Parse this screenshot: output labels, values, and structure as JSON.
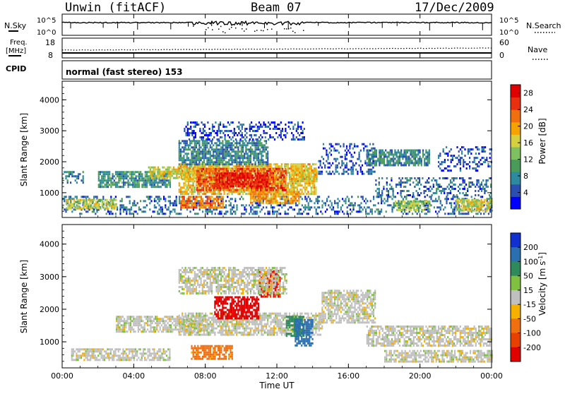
{
  "header": {
    "station": "Unwin (fitACF)",
    "beam": "Beam 07",
    "date": "17/Dec/2009"
  },
  "noise_panel": {
    "left_label": "N.Sky",
    "right_label": "N.Search",
    "left_ticks": [
      "10^5",
      "10^0"
    ],
    "right_ticks": [
      "10^5",
      "10^0"
    ]
  },
  "freq_panel": {
    "left_label_line1": "Freq.",
    "left_label_line2": "[MHz]",
    "right_label": "Nave",
    "left_ticks": [
      "18",
      "8"
    ],
    "right_ticks": [
      "60",
      "0"
    ]
  },
  "cpid_panel": {
    "label": "CPID",
    "text": "normal (fast stereo) 153"
  },
  "chart_data": [
    {
      "type": "heatmap",
      "panel": "power",
      "ylabel": "Slant Range [km]",
      "xlabel": "",
      "x_ticks": [
        "00:00",
        "04:00",
        "08:00",
        "12:00",
        "16:00",
        "20:00",
        "00:00"
      ],
      "y_ticks": [
        1000,
        2000,
        3000,
        4000
      ],
      "ylim": [
        200,
        4600
      ],
      "xlim_hours": [
        0,
        24
      ],
      "colorbar": {
        "label": "Power [dB]",
        "ticks": [
          4,
          8,
          12,
          16,
          20,
          24,
          28
        ],
        "range": [
          0,
          30
        ],
        "colors": [
          "#0000ff",
          "#2a4fb0",
          "#2e8a9e",
          "#4a9a5a",
          "#7fc060",
          "#d4d040",
          "#f5a300",
          "#f07010",
          "#e83010",
          "#e00000"
        ]
      },
      "regions": [
        {
          "t0": 0.0,
          "t1": 24.0,
          "r0": 350,
          "r1": 900,
          "level": 6
        },
        {
          "t0": 0.2,
          "t1": 3.0,
          "r0": 500,
          "r1": 800,
          "level": 15
        },
        {
          "t0": 0.0,
          "t1": 1.2,
          "r0": 1300,
          "r1": 1700,
          "level": 7
        },
        {
          "t0": 2.0,
          "t1": 6.0,
          "r0": 1200,
          "r1": 1700,
          "level": 9
        },
        {
          "t0": 4.8,
          "t1": 8.0,
          "r0": 1450,
          "r1": 1850,
          "level": 16
        },
        {
          "t0": 6.5,
          "t1": 14.2,
          "r0": 950,
          "r1": 1950,
          "level": 18
        },
        {
          "t0": 7.5,
          "t1": 12.5,
          "r0": 1100,
          "r1": 1800,
          "level": 24
        },
        {
          "t0": 8.5,
          "t1": 11.5,
          "r0": 1200,
          "r1": 1650,
          "level": 28
        },
        {
          "t0": 6.6,
          "t1": 9.0,
          "r0": 500,
          "r1": 900,
          "level": 22
        },
        {
          "t0": 10.5,
          "t1": 13.2,
          "r0": 650,
          "r1": 1050,
          "level": 20
        },
        {
          "t0": 6.5,
          "t1": 11.5,
          "r0": 1900,
          "r1": 2700,
          "level": 8
        },
        {
          "t0": 6.8,
          "t1": 13.5,
          "r0": 2700,
          "r1": 3300,
          "level": 4
        },
        {
          "t0": 12.8,
          "t1": 14.2,
          "r0": 1400,
          "r1": 1750,
          "level": 18
        },
        {
          "t0": 14.3,
          "t1": 17.5,
          "r0": 1600,
          "r1": 2600,
          "level": 5
        },
        {
          "t0": 17.0,
          "t1": 20.5,
          "r0": 1900,
          "r1": 2400,
          "level": 8
        },
        {
          "t0": 17.5,
          "t1": 24.0,
          "r0": 900,
          "r1": 1500,
          "level": 6
        },
        {
          "t0": 18.5,
          "t1": 20.5,
          "r0": 450,
          "r1": 750,
          "level": 14
        },
        {
          "t0": 22.0,
          "t1": 24.0,
          "r0": 400,
          "r1": 800,
          "level": 16
        },
        {
          "t0": 21.0,
          "t1": 24.0,
          "r0": 1700,
          "r1": 2500,
          "level": 5
        }
      ]
    },
    {
      "type": "heatmap",
      "panel": "velocity",
      "ylabel": "Slant Range [km]",
      "xlabel": "Time UT",
      "x_ticks": [
        "00:00",
        "04:00",
        "08:00",
        "12:00",
        "16:00",
        "20:00",
        "00:00"
      ],
      "y_ticks": [
        1000,
        2000,
        3000,
        4000
      ],
      "ylim": [
        200,
        4600
      ],
      "xlim_hours": [
        0,
        24
      ],
      "colorbar": {
        "label": "Velocity [m s^-1]",
        "tick_labels": [
          "200",
          "100",
          "50",
          "15",
          "-15",
          "-50",
          "-100",
          "-200"
        ],
        "colors": [
          "#1030d0",
          "#2a6fb0",
          "#2e8a5a",
          "#7fc040",
          "#c0c0c0",
          "#f5b000",
          "#f07010",
          "#e84000",
          "#e00000"
        ]
      },
      "regions": [
        {
          "t0": 0.5,
          "t1": 6.0,
          "r0": 450,
          "r1": 800,
          "vel": 0
        },
        {
          "t0": 3.0,
          "t1": 8.0,
          "r0": 1300,
          "r1": 1800,
          "vel": 0
        },
        {
          "t0": 6.5,
          "t1": 14.5,
          "r0": 1200,
          "r1": 1900,
          "vel": 0
        },
        {
          "t0": 8.5,
          "t1": 11.0,
          "r0": 1700,
          "r1": 2400,
          "vel": -200
        },
        {
          "t0": 11.0,
          "t1": 12.2,
          "r0": 2400,
          "r1": 3200,
          "vel": -150
        },
        {
          "t0": 7.2,
          "t1": 9.5,
          "r0": 500,
          "r1": 900,
          "vel": -50
        },
        {
          "t0": 12.5,
          "t1": 13.5,
          "r0": 1200,
          "r1": 1800,
          "vel": 50
        },
        {
          "t0": 13.0,
          "t1": 14.0,
          "r0": 900,
          "r1": 1700,
          "vel": 100
        },
        {
          "t0": 14.5,
          "t1": 17.5,
          "r0": 1600,
          "r1": 2600,
          "vel": 0
        },
        {
          "t0": 17.0,
          "t1": 24.0,
          "r0": 900,
          "r1": 1500,
          "vel": 0
        },
        {
          "t0": 18.0,
          "t1": 24.0,
          "r0": 400,
          "r1": 750,
          "vel": 0
        },
        {
          "t0": 6.5,
          "t1": 12.5,
          "r0": 2500,
          "r1": 3300,
          "vel": 0
        }
      ]
    }
  ]
}
